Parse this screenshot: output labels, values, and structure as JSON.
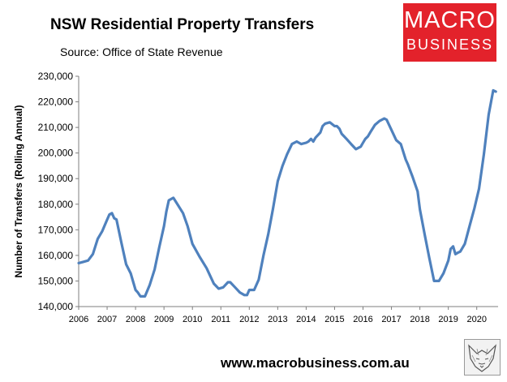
{
  "header": {
    "title": "NSW Residential Property Transfers",
    "subtitle": "Source: Office of State Revenue"
  },
  "logo": {
    "line1": "MACRO",
    "line2": "BUSINESS",
    "color": "#e3222b"
  },
  "footer": {
    "website": "www.macrobusiness.com.au",
    "badge_icon": "fox-sketch-icon"
  },
  "chart_data": {
    "type": "line",
    "title": "NSW Residential Property Transfers",
    "xlabel": "",
    "ylabel": "Number of Transfers (Rolling Annual)",
    "ylim": [
      140000,
      230000
    ],
    "xlim": [
      2006,
      2020.75
    ],
    "yticks": [
      140000,
      150000,
      160000,
      170000,
      180000,
      190000,
      200000,
      210000,
      220000,
      230000
    ],
    "ytick_labels": [
      "140,000",
      "150,000",
      "160,000",
      "170,000",
      "180,000",
      "190,000",
      "200,000",
      "210,000",
      "220,000",
      "230,000"
    ],
    "xticks": [
      2006,
      2007,
      2008,
      2009,
      2010,
      2011,
      2012,
      2013,
      2014,
      2015,
      2016,
      2017,
      2018,
      2019,
      2020
    ],
    "xtick_labels": [
      "2006",
      "2007",
      "2008",
      "2009",
      "2010",
      "2011",
      "2012",
      "2013",
      "2014",
      "2015",
      "2016",
      "2017",
      "2018",
      "2019",
      "2020"
    ],
    "grid": false,
    "legend": "none",
    "line_color": "#4f81bd",
    "series": [
      {
        "x": [
          2006.0,
          2006.17,
          2006.33,
          2006.5,
          2006.67,
          2006.83,
          2007.0,
          2007.08,
          2007.17,
          2007.25,
          2007.33,
          2007.5,
          2007.67,
          2007.83,
          2008.0,
          2008.08,
          2008.17,
          2008.33,
          2008.5,
          2008.67,
          2008.83,
          2009.0,
          2009.08,
          2009.17,
          2009.33,
          2009.5,
          2009.67,
          2009.83,
          2010.0,
          2010.25,
          2010.5,
          2010.75,
          2010.92,
          2011.08,
          2011.25,
          2011.33,
          2011.5,
          2011.67,
          2011.83,
          2011.92,
          2012.0,
          2012.17,
          2012.33,
          2012.5,
          2012.67,
          2012.83,
          2013.0,
          2013.17,
          2013.33,
          2013.5,
          2013.67,
          2013.83,
          2014.0,
          2014.08,
          2014.17,
          2014.25,
          2014.33,
          2014.5,
          2014.58,
          2014.67,
          2014.83,
          2015.0,
          2015.08,
          2015.17,
          2015.25,
          2015.42,
          2015.58,
          2015.75,
          2015.92,
          2016.0,
          2016.08,
          2016.17,
          2016.25,
          2016.42,
          2016.58,
          2016.75,
          2016.83,
          2017.0,
          2017.17,
          2017.33,
          2017.5,
          2017.58,
          2017.75,
          2017.92,
          2018.0,
          2018.17,
          2018.33,
          2018.5,
          2018.67,
          2018.83,
          2019.0,
          2019.08,
          2019.17,
          2019.25,
          2019.33,
          2019.42,
          2019.58,
          2019.75,
          2019.92,
          2020.08,
          2020.25,
          2020.42,
          2020.58,
          2020.67
        ],
        "y": [
          157000,
          157500,
          158000,
          160500,
          166500,
          169500,
          174000,
          176000,
          176500,
          174500,
          174000,
          165000,
          156500,
          153000,
          146500,
          145500,
          144000,
          144000,
          148500,
          154500,
          163000,
          171500,
          177000,
          181500,
          182500,
          179500,
          176500,
          171500,
          164500,
          159500,
          155000,
          149000,
          147000,
          147500,
          149500,
          149500,
          147500,
          145500,
          144500,
          144500,
          146500,
          146500,
          150500,
          160000,
          168500,
          178000,
          189000,
          195000,
          199500,
          203500,
          204500,
          203500,
          204000,
          204500,
          205500,
          204500,
          206000,
          208000,
          210500,
          211500,
          212000,
          210500,
          210500,
          209500,
          207500,
          205500,
          203500,
          201500,
          202500,
          204000,
          205500,
          206500,
          208000,
          211000,
          212500,
          213500,
          213000,
          209000,
          205000,
          203500,
          197500,
          195500,
          190500,
          185000,
          178000,
          168000,
          159000,
          150000,
          150000,
          153000,
          158000,
          162500,
          163500,
          160500,
          161000,
          161500,
          164500,
          171500,
          178500,
          186000,
          199500,
          215000,
          224500,
          224000
        ]
      }
    ]
  }
}
